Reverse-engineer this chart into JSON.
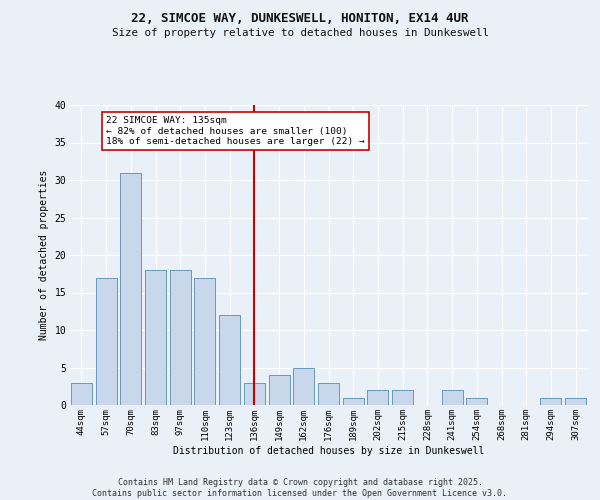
{
  "title1": "22, SIMCOE WAY, DUNKESWELL, HONITON, EX14 4UR",
  "title2": "Size of property relative to detached houses in Dunkeswell",
  "xlabel": "Distribution of detached houses by size in Dunkeswell",
  "ylabel": "Number of detached properties",
  "bar_labels": [
    "44sqm",
    "57sqm",
    "70sqm",
    "83sqm",
    "97sqm",
    "110sqm",
    "123sqm",
    "136sqm",
    "149sqm",
    "162sqm",
    "176sqm",
    "189sqm",
    "202sqm",
    "215sqm",
    "228sqm",
    "241sqm",
    "254sqm",
    "268sqm",
    "281sqm",
    "294sqm",
    "307sqm"
  ],
  "bar_values": [
    3,
    17,
    31,
    18,
    18,
    17,
    12,
    3,
    4,
    5,
    3,
    1,
    2,
    2,
    0,
    2,
    1,
    0,
    0,
    1,
    1
  ],
  "bar_color": "#c8d8ea",
  "bar_edgecolor": "#6699bb",
  "vline_color": "#cc0000",
  "annotation_text": "22 SIMCOE WAY: 135sqm\n← 82% of detached houses are smaller (100)\n18% of semi-detached houses are larger (22) →",
  "ylim": [
    0,
    40
  ],
  "yticks": [
    0,
    5,
    10,
    15,
    20,
    25,
    30,
    35,
    40
  ],
  "plot_bg": "#eaf0f8",
  "fig_bg": "#eaf0f8",
  "footer1": "Contains HM Land Registry data © Crown copyright and database right 2025.",
  "footer2": "Contains public sector information licensed under the Open Government Licence v3.0."
}
